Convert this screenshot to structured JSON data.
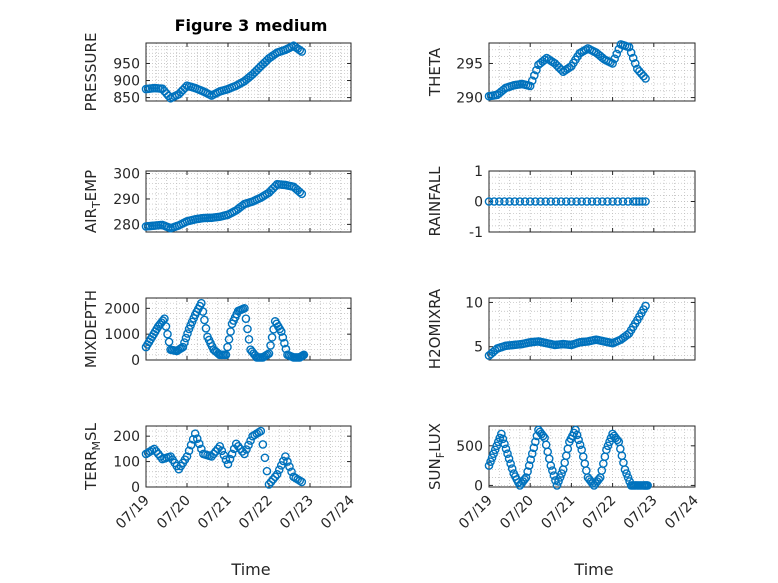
{
  "title": "Figure 3 medium",
  "x_axis": {
    "label": "Time",
    "ticks": [
      {
        "day": 0,
        "label": "07/19"
      },
      {
        "day": 1,
        "label": "07/20"
      },
      {
        "day": 2,
        "label": "07/21"
      },
      {
        "day": 3,
        "label": "07/22"
      },
      {
        "day": 4,
        "label": "07/23"
      },
      {
        "day": 5,
        "label": "07/24"
      }
    ]
  },
  "colors": {
    "marker": "#0072BD",
    "axis": "#262626",
    "grid": "#b8b8b8"
  },
  "chart_data": [
    {
      "type": "scatter",
      "id": "pressure",
      "ylabel": "PRESSURE",
      "ylabel_sub": "",
      "xlim": [
        0,
        5
      ],
      "ylim": [
        840,
        1010
      ],
      "yticks": [
        850,
        900,
        950
      ],
      "grid": true,
      "x": [
        0,
        0.2,
        0.4,
        0.6,
        0.8,
        1.0,
        1.2,
        1.4,
        1.6,
        1.8,
        2.0,
        2.2,
        2.4,
        2.6,
        2.8,
        3.0,
        3.2,
        3.4,
        3.6,
        3.8
      ],
      "y": [
        875,
        878,
        876,
        848,
        860,
        885,
        878,
        868,
        856,
        868,
        875,
        885,
        898,
        918,
        942,
        965,
        982,
        990,
        1002,
        985
      ]
    },
    {
      "type": "scatter",
      "id": "theta",
      "ylabel": "THETA",
      "ylabel_sub": "",
      "xlim": [
        0,
        5
      ],
      "ylim": [
        289.5,
        298
      ],
      "yticks": [
        290,
        295
      ],
      "grid": true,
      "x": [
        0,
        0.2,
        0.4,
        0.6,
        0.8,
        1.0,
        1.2,
        1.4,
        1.6,
        1.8,
        2.0,
        2.2,
        2.4,
        2.6,
        2.8,
        3.0,
        3.2,
        3.4,
        3.6,
        3.8
      ],
      "y": [
        290.2,
        290.4,
        291.4,
        291.8,
        292,
        291.7,
        294.8,
        295.8,
        295,
        293.8,
        294.6,
        296.5,
        297.2,
        296.6,
        295.6,
        295,
        297.8,
        297.4,
        294.2,
        292.8
      ]
    },
    {
      "type": "scatter",
      "id": "air_temp",
      "ylabel": "AIR",
      "ylabel_sub": "T",
      "ylabel_suffix": "EMP",
      "xlim": [
        0,
        5
      ],
      "ylim": [
        277,
        301
      ],
      "yticks": [
        280,
        290,
        300
      ],
      "grid": true,
      "x": [
        0,
        0.2,
        0.4,
        0.6,
        0.8,
        1.0,
        1.2,
        1.4,
        1.6,
        1.8,
        2.0,
        2.2,
        2.4,
        2.6,
        2.8,
        3.0,
        3.2,
        3.4,
        3.6,
        3.8
      ],
      "y": [
        279.2,
        279.5,
        279.8,
        278.5,
        279.6,
        281.2,
        282,
        282.5,
        282.6,
        283,
        283.8,
        285.5,
        288,
        289,
        290.5,
        292.5,
        295.8,
        295.5,
        294.8,
        292
      ]
    },
    {
      "type": "scatter",
      "id": "rainfall",
      "ylabel": "RAINFALL",
      "ylabel_sub": "",
      "xlim": [
        0,
        5
      ],
      "ylim": [
        -1,
        1
      ],
      "yticks": [
        -1,
        0,
        1
      ],
      "grid": true,
      "x": [
        0,
        0.5,
        1.0,
        1.5,
        2.0,
        2.5,
        3.0,
        3.5,
        3.8
      ],
      "y": [
        0,
        0,
        0,
        0,
        0,
        0,
        0,
        0,
        0
      ]
    },
    {
      "type": "scatter",
      "id": "mixdepth",
      "ylabel": "MIXDEPTH",
      "ylabel_sub": "",
      "xlim": [
        0,
        5
      ],
      "ylim": [
        0,
        2400
      ],
      "yticks": [
        0,
        1000,
        2000
      ],
      "grid": true,
      "x": [
        0,
        0.15,
        0.3,
        0.45,
        0.6,
        0.75,
        0.9,
        1.05,
        1.2,
        1.35,
        1.5,
        1.65,
        1.8,
        1.95,
        2.1,
        2.25,
        2.4,
        2.55,
        2.7,
        2.85,
        3.0,
        3.15,
        3.3,
        3.45,
        3.6,
        3.75,
        3.85
      ],
      "y": [
        500,
        900,
        1300,
        1600,
        400,
        350,
        500,
        1200,
        1750,
        2200,
        900,
        400,
        200,
        200,
        1400,
        1900,
        2000,
        400,
        100,
        100,
        250,
        1500,
        1100,
        200,
        100,
        100,
        200
      ]
    },
    {
      "type": "scatter",
      "id": "h2omixra",
      "ylabel": "H2OMIXRA",
      "ylabel_sub": "",
      "xlim": [
        0,
        5
      ],
      "ylim": [
        3.5,
        10.5
      ],
      "yticks": [
        5,
        10
      ],
      "grid": true,
      "x": [
        0,
        0.2,
        0.4,
        0.6,
        0.8,
        1.0,
        1.2,
        1.4,
        1.6,
        1.8,
        2.0,
        2.2,
        2.4,
        2.6,
        2.8,
        3.0,
        3.2,
        3.4,
        3.6,
        3.8
      ],
      "y": [
        4,
        4.8,
        5.1,
        5.2,
        5.3,
        5.5,
        5.6,
        5.4,
        5.2,
        5.3,
        5.2,
        5.5,
        5.6,
        5.8,
        5.6,
        5.4,
        5.8,
        6.5,
        8.0,
        9.6
      ]
    },
    {
      "type": "scatter",
      "id": "terr_msl",
      "ylabel": "TERR",
      "ylabel_sub": "M",
      "ylabel_suffix": "SL",
      "xlim": [
        0,
        5
      ],
      "ylim": [
        0,
        240
      ],
      "yticks": [
        0,
        100,
        200
      ],
      "grid": true,
      "x": [
        0,
        0.2,
        0.4,
        0.6,
        0.8,
        1.0,
        1.2,
        1.4,
        1.6,
        1.8,
        2.0,
        2.2,
        2.4,
        2.6,
        2.8,
        3.0,
        3.2,
        3.4,
        3.6,
        3.8
      ],
      "y": [
        130,
        150,
        110,
        120,
        70,
        120,
        210,
        130,
        120,
        160,
        90,
        170,
        130,
        200,
        220,
        10,
        50,
        120,
        40,
        20
      ]
    },
    {
      "type": "scatter",
      "id": "sun_flux",
      "ylabel": "SUN",
      "ylabel_sub": "F",
      "ylabel_suffix": "LUX",
      "xlim": [
        0,
        5
      ],
      "ylim": [
        -20,
        750
      ],
      "yticks": [
        0,
        500
      ],
      "grid": true,
      "x": [
        0,
        0.15,
        0.3,
        0.45,
        0.6,
        0.75,
        0.9,
        1.05,
        1.2,
        1.35,
        1.5,
        1.65,
        1.8,
        1.95,
        2.1,
        2.25,
        2.4,
        2.55,
        2.7,
        2.85,
        3.0,
        3.15,
        3.3,
        3.45,
        3.6,
        3.75,
        3.85
      ],
      "y": [
        250,
        450,
        650,
        400,
        150,
        0,
        100,
        400,
        700,
        600,
        250,
        0,
        200,
        550,
        700,
        450,
        100,
        0,
        100,
        450,
        650,
        550,
        200,
        0,
        0,
        0,
        0
      ]
    }
  ]
}
